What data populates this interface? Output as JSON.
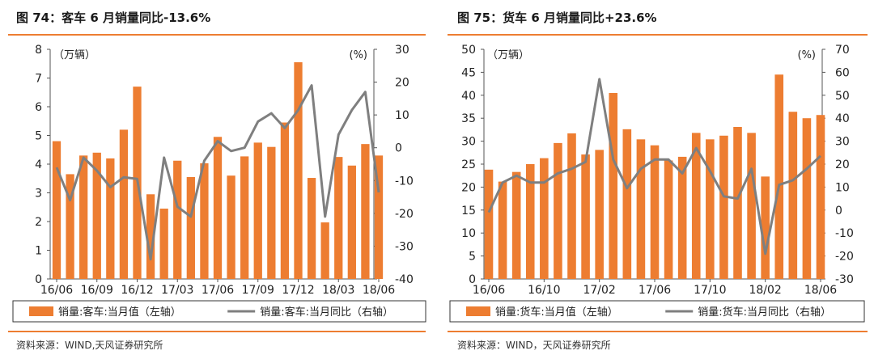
{
  "colors": {
    "bar": "#ED7D31",
    "line": "#7F7F7F",
    "rule": "#ED7D31",
    "axis": "#555555"
  },
  "chart_data": [
    {
      "type": "bar+line",
      "title": "图 74：客车 6 月销量同比-13.6%",
      "left_unit": "（万辆）",
      "right_unit": "(%)",
      "left_axis": {
        "min": 0,
        "max": 8,
        "ticks": [
          0,
          1,
          2,
          3,
          4,
          5,
          6,
          7,
          8
        ]
      },
      "right_axis": {
        "min": -40,
        "max": 30,
        "ticks": [
          -40,
          -30,
          -20,
          -10,
          0,
          10,
          20,
          30
        ]
      },
      "x_tick_labels": [
        "16/06",
        "16/09",
        "16/12",
        "17/03",
        "17/06",
        "17/09",
        "17/12",
        "18/03",
        "18/06"
      ],
      "categories": [
        "16/06",
        "16/07",
        "16/08",
        "16/09",
        "16/10",
        "16/11",
        "16/12",
        "17/01",
        "17/02",
        "17/03",
        "17/04",
        "17/05",
        "17/06",
        "17/07",
        "17/08",
        "17/09",
        "17/10",
        "17/11",
        "17/12",
        "18/01",
        "18/02",
        "18/03",
        "18/04",
        "18/05",
        "18/06"
      ],
      "series": [
        {
          "name": "销量:客车:当月值（左轴）",
          "type": "bar",
          "axis": "left",
          "values": [
            4.8,
            3.65,
            4.3,
            4.4,
            4.2,
            5.2,
            6.7,
            2.95,
            2.45,
            4.12,
            3.55,
            4.03,
            4.95,
            3.6,
            4.27,
            4.75,
            4.6,
            5.45,
            7.55,
            3.52,
            1.97,
            4.25,
            3.95,
            4.7,
            4.3
          ]
        },
        {
          "name": "销量:客车:当月同比（右轴）",
          "type": "line",
          "axis": "right",
          "values": [
            -6,
            -16,
            -3,
            -7,
            -12,
            -9,
            -9.5,
            -34,
            -3,
            -18,
            -21,
            -4,
            2,
            -1,
            0,
            8,
            10.5,
            6,
            11.5,
            19,
            -21,
            4,
            11.5,
            17,
            -13.6
          ]
        }
      ],
      "source": "资料来源：WIND,天风证券研究所"
    },
    {
      "type": "bar+line",
      "title": "图 75：货车 6 月销量同比+23.6%",
      "left_unit": "（万辆）",
      "right_unit": "(%)",
      "left_axis": {
        "min": 0,
        "max": 50,
        "ticks": [
          0,
          5,
          10,
          15,
          20,
          25,
          30,
          35,
          40,
          45,
          50
        ]
      },
      "right_axis": {
        "min": -30,
        "max": 70,
        "ticks": [
          -30,
          -20,
          -10,
          0,
          10,
          20,
          30,
          40,
          50,
          60,
          70
        ]
      },
      "x_tick_labels": [
        "16/06",
        "16/10",
        "17/02",
        "17/06",
        "17/10",
        "18/02",
        "18/06"
      ],
      "categories": [
        "16/06",
        "16/07",
        "16/08",
        "16/09",
        "16/10",
        "16/11",
        "16/12",
        "17/01",
        "17/02",
        "17/03",
        "17/04",
        "17/05",
        "17/06",
        "17/07",
        "17/08",
        "17/09",
        "17/10",
        "17/11",
        "17/12",
        "18/01",
        "18/02",
        "18/03",
        "18/04",
        "18/05",
        "18/06"
      ],
      "series": [
        {
          "name": "销量:货车:当月值（左轴）",
          "type": "bar",
          "axis": "left",
          "values": [
            23.8,
            21.2,
            23.3,
            25,
            26.3,
            29.6,
            31.7,
            27.1,
            28.1,
            40.5,
            32.6,
            30.4,
            29.1,
            25.8,
            26.6,
            31.8,
            30.4,
            31.2,
            33.1,
            31.8,
            22.3,
            44.5,
            36.4,
            35,
            35.7
          ]
        },
        {
          "name": "销量:货车:当月同比（右轴）",
          "type": "line",
          "axis": "right",
          "values": [
            -1,
            12,
            15,
            12,
            12,
            16,
            18,
            21,
            57,
            22,
            9.5,
            18,
            22,
            22,
            16,
            27,
            17,
            6,
            5,
            18,
            -19,
            11,
            13,
            18,
            23.6
          ]
        }
      ],
      "source": "资料来源：WIND，天风证券研究所"
    }
  ]
}
